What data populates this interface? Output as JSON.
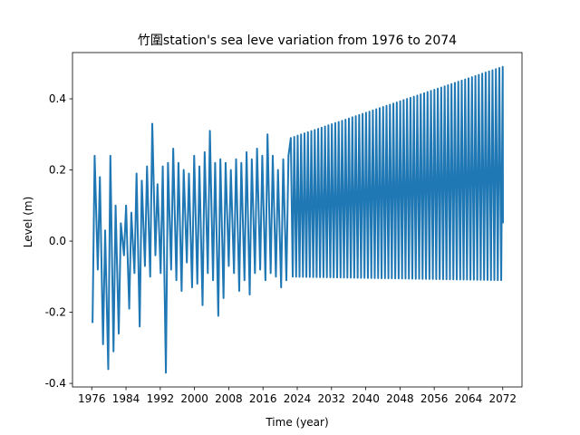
{
  "chart_data": {
    "type": "line",
    "title": "竹圍station's sea leve variation from 1976 to 2074",
    "xlabel": "Time (year)",
    "ylabel": "Level (m)",
    "xlim": [
      1971.5,
      2076.5
    ],
    "ylim": [
      -0.41,
      0.53
    ],
    "xticks": [
      1976,
      1984,
      1992,
      2000,
      2008,
      2016,
      2024,
      2032,
      2040,
      2048,
      2056,
      2064,
      2072
    ],
    "yticks": [
      -0.4,
      -0.2,
      0.0,
      0.2,
      0.4
    ],
    "ytick_labels": [
      "-0.4",
      "-0.2",
      "0.0",
      "0.2",
      "0.4"
    ],
    "grid": false,
    "color": "#1f77b4",
    "observed": {
      "start_year": 1976,
      "peaks": [
        0.24,
        0.18,
        0.03,
        0.24,
        0.1,
        0.05,
        0.1,
        0.08,
        0.19,
        0.17,
        0.21,
        0.33,
        0.16,
        0.21,
        0.22,
        0.26,
        0.22,
        0.2,
        0.19,
        0.24,
        0.21,
        0.25,
        0.31,
        0.22,
        0.23,
        0.22,
        0.2,
        0.23,
        0.22,
        0.25,
        0.23,
        0.26,
        0.24,
        0.3,
        0.24,
        0.2,
        0.23,
        0.24
      ],
      "troughs": [
        -0.23,
        -0.08,
        -0.29,
        -0.36,
        -0.31,
        -0.26,
        -0.04,
        -0.19,
        -0.09,
        -0.24,
        -0.07,
        -0.1,
        -0.04,
        -0.09,
        -0.37,
        -0.08,
        -0.11,
        -0.14,
        -0.06,
        -0.13,
        -0.12,
        -0.18,
        -0.09,
        -0.11,
        -0.21,
        -0.16,
        -0.07,
        -0.09,
        -0.14,
        -0.11,
        -0.15,
        -0.09,
        -0.08,
        -0.11,
        -0.09,
        -0.1,
        -0.13,
        -0.11
      ]
    },
    "projection": {
      "start_year": 2022.5,
      "end_year": 2072,
      "peak_start": 0.29,
      "peak_end": 0.49,
      "trough_start": -0.1,
      "trough_end": -0.11,
      "final_value": 0.05
    }
  }
}
